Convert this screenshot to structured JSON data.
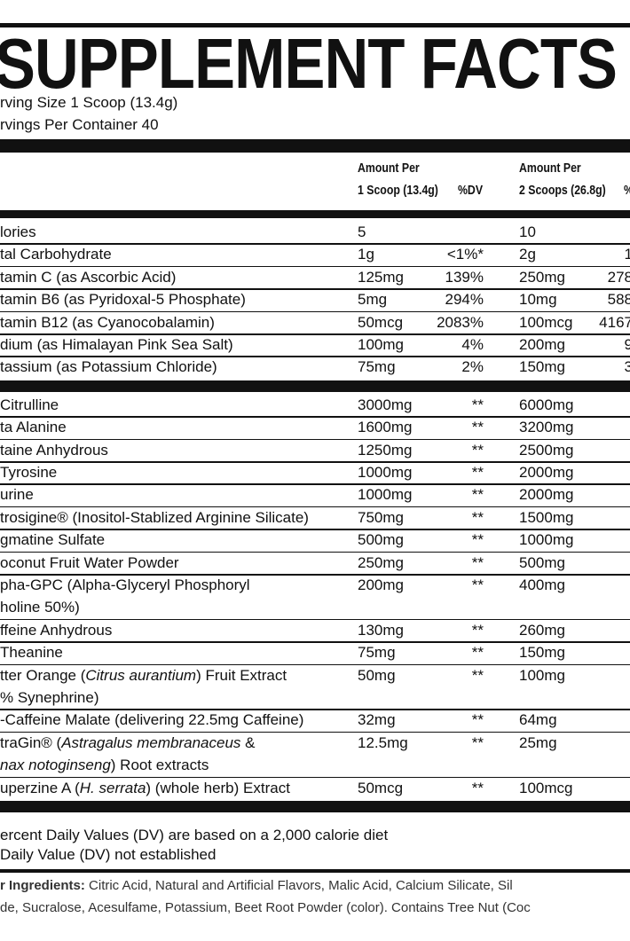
{
  "title": "SUPPLEMENT FACTS",
  "serving": [
    "rving Size  1 Scoop (13.4g)",
    "rvings Per Container  40"
  ],
  "header": {
    "amt1": [
      "Amount Per",
      "1 Scoop (13.4g)"
    ],
    "dv1": "%DV",
    "amt2": [
      "Amount Per",
      "2 Scoops (26.8g)"
    ],
    "dv2": "%"
  },
  "sections": [
    [
      {
        "name": [
          [
            "lories"
          ]
        ],
        "amt1": "5",
        "amt2": "10"
      },
      {
        "name": [
          [
            "tal Carbohydrate"
          ]
        ],
        "amt1": "1g",
        "dv1": "<1%*",
        "amt2": "2g",
        "dv2": "1"
      },
      {
        "name": [
          [
            "tamin C (as Ascorbic Acid)"
          ]
        ],
        "amt1": "125mg",
        "dv1": "139%",
        "amt2": "250mg",
        "dv2": "278"
      },
      {
        "name": [
          [
            "tamin B6 (as Pyridoxal-5 Phosphate)"
          ]
        ],
        "amt1": "5mg",
        "dv1": "294%",
        "amt2": "10mg",
        "dv2": "588"
      },
      {
        "name": [
          [
            "tamin B12 (as Cyanocobalamin)"
          ]
        ],
        "amt1": "50mcg",
        "dv1": "2083%",
        "amt2": "100mcg",
        "dv2": "4167"
      },
      {
        "name": [
          [
            "dium (as Himalayan Pink Sea Salt)"
          ]
        ],
        "amt1": "100mg",
        "dv1": "4%",
        "amt2": "200mg",
        "dv2": "9"
      },
      {
        "name": [
          [
            "tassium (as Potassium Chloride)"
          ]
        ],
        "amt1": "75mg",
        "dv1": "2%",
        "amt2": "150mg",
        "dv2": "3"
      }
    ],
    [
      {
        "name": [
          [
            "Citrulline"
          ]
        ],
        "amt1": "3000mg",
        "dv1": "**",
        "amt2": "6000mg"
      },
      {
        "name": [
          [
            "ta Alanine"
          ]
        ],
        "amt1": "1600mg",
        "dv1": "**",
        "amt2": "3200mg"
      },
      {
        "name": [
          [
            "taine Anhydrous"
          ]
        ],
        "amt1": "1250mg",
        "dv1": "**",
        "amt2": "2500mg"
      },
      {
        "name": [
          [
            "Tyrosine"
          ]
        ],
        "amt1": "1000mg",
        "dv1": "**",
        "amt2": "2000mg"
      },
      {
        "name": [
          [
            "urine"
          ]
        ],
        "amt1": "1000mg",
        "dv1": "**",
        "amt2": "2000mg"
      },
      {
        "name": [
          [
            "trosigine® (Inositol-Stablized Arginine Silicate)"
          ]
        ],
        "amt1": "750mg",
        "dv1": "**",
        "amt2": "1500mg"
      },
      {
        "name": [
          [
            "gmatine Sulfate"
          ]
        ],
        "amt1": "500mg",
        "dv1": "**",
        "amt2": "1000mg"
      },
      {
        "name": [
          [
            "oconut Fruit Water Powder"
          ]
        ],
        "amt1": "250mg",
        "dv1": "**",
        "amt2": "500mg"
      },
      {
        "name": [
          [
            "pha-GPC (Alpha-Glyceryl Phosphoryl"
          ],
          [
            "holine 50%)"
          ]
        ],
        "amt1": "200mg",
        "dv1": "**",
        "amt2": "400mg"
      },
      {
        "name": [
          [
            "ffeine Anhydrous"
          ]
        ],
        "amt1": "130mg",
        "dv1": "**",
        "amt2": "260mg"
      },
      {
        "name": [
          [
            "Theanine"
          ]
        ],
        "amt1": "75mg",
        "dv1": "**",
        "amt2": "150mg"
      },
      {
        "name": [
          [
            "tter Orange (",
            {
              "italic": "Citrus aurantium"
            },
            ") Fruit Extract"
          ],
          [
            "% Synephrine)"
          ]
        ],
        "amt1": "50mg",
        "dv1": "**",
        "amt2": "100mg"
      },
      {
        "name": [
          [
            "-Caffeine Malate (delivering 22.5mg Caffeine)"
          ]
        ],
        "amt1": "32mg",
        "dv1": "**",
        "amt2": "64mg"
      },
      {
        "name": [
          [
            "traGin® (",
            {
              "italic": "Astragalus membranaceus"
            },
            " &"
          ],
          [
            {
              "italic": "nax notoginseng"
            },
            ") Root extracts"
          ]
        ],
        "amt1": "12.5mg",
        "dv1": "**",
        "amt2": "25mg"
      },
      {
        "name": [
          [
            "uperzine A (",
            {
              "italic": "H. serrata"
            },
            ") (whole herb) Extract"
          ]
        ],
        "amt1": "50mcg",
        "dv1": "**",
        "amt2": "100mcg"
      }
    ]
  ],
  "footnotes": [
    "ercent Daily Values (DV) are based on a 2,000 calorie diet",
    "Daily Value (DV) not established"
  ],
  "other": {
    "label": "r Ingredients:",
    "lines": [
      " Citric Acid, Natural and Artificial Flavors, Malic Acid,  Calcium Silicate, Sil",
      "de, Sucralose, Acesulfame, Potassium, Beet Root Powder (color). Contains Tree Nut (Coc"
    ]
  }
}
